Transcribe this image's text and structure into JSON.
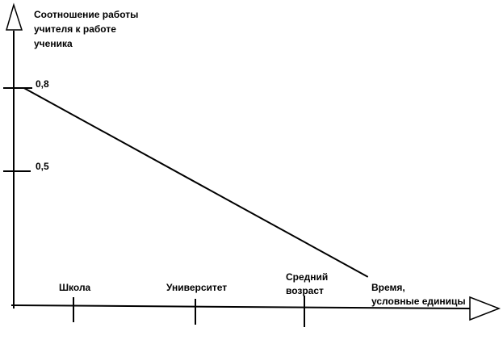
{
  "chart_data": {
    "type": "line",
    "ylabel": [
      "Соотношение работы",
      "учителя к работе",
      "ученика"
    ],
    "xlabel": [
      "Время,",
      "условные единицы"
    ],
    "y_ticks": [
      {
        "label": "0,8",
        "value": 0.8
      },
      {
        "label": "0,5",
        "value": 0.5
      }
    ],
    "x_ticks": [
      {
        "label": [
          "Школа"
        ],
        "value": 1
      },
      {
        "label": [
          "Университет"
        ],
        "value": 2
      },
      {
        "label": [
          "Средний",
          "возраст"
        ],
        "value": 3
      }
    ],
    "ylim": [
      0,
      1.05
    ],
    "xlim": [
      0,
      4.45
    ],
    "series": [
      {
        "x": [
          0.1,
          3.45
        ],
        "y": [
          0.8,
          0.12
        ]
      }
    ],
    "grid": false,
    "colors": {
      "ink": "#000000",
      "background": "#ffffff"
    }
  }
}
